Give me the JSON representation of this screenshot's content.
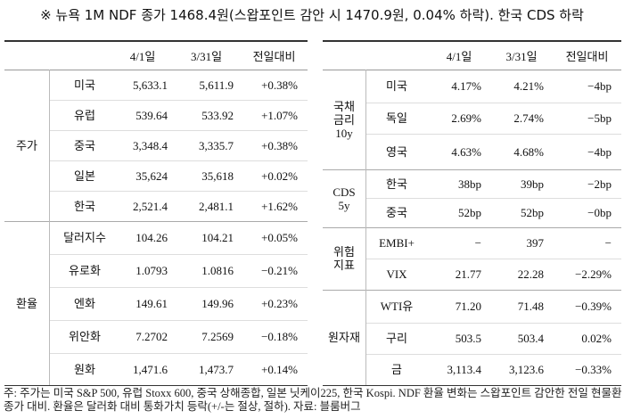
{
  "title": "※ 뉴욕 1M NDF 종가 1468.4원(스왑포인트 감안 시 1470.9원, 0.04% 하락). 한국 CDS 하락",
  "left_table": {
    "header": [
      "4/1일",
      "3/31일",
      "전일대비"
    ],
    "groups": [
      {
        "label": "주가",
        "rows": [
          [
            "미국",
            "5,633.1",
            "5,611.9",
            "+0.38%"
          ],
          [
            "유럽",
            "539.64",
            "533.92",
            "+1.07%"
          ],
          [
            "중국",
            "3,348.4",
            "3,335.7",
            "+0.38%"
          ],
          [
            "일본",
            "35,624",
            "35,618",
            "+0.02%"
          ],
          [
            "한국",
            "2,521.4",
            "2,481.1",
            "+1.62%"
          ]
        ]
      },
      {
        "label": "환율",
        "rows": [
          [
            "달러지수",
            "104.26",
            "104.21",
            "+0.05%"
          ],
          [
            "유로화",
            "1.0793",
            "1.0816",
            "−0.21%"
          ],
          [
            "엔화",
            "149.61",
            "149.96",
            "+0.23%"
          ],
          [
            "위안화",
            "7.2702",
            "7.2569",
            "−0.18%"
          ],
          [
            "원화",
            "1,471.6",
            "1,473.7",
            "+0.14%"
          ]
        ]
      }
    ]
  },
  "right_table": {
    "header": [
      "4/1일",
      "3/31일",
      "전일대비"
    ],
    "groups": [
      {
        "label": "국채\n금리\n10y",
        "rows": [
          [
            "미국",
            "4.17%",
            "4.21%",
            "−4bp"
          ],
          [
            "독일",
            "2.69%",
            "2.74%",
            "−5bp"
          ],
          [
            "영국",
            "4.63%",
            "4.68%",
            "−4bp"
          ]
        ]
      },
      {
        "label": "CDS\n5y",
        "rows": [
          [
            "한국",
            "38bp",
            "39bp",
            "−2bp"
          ],
          [
            "중국",
            "52bp",
            "52bp",
            "−0bp"
          ]
        ]
      },
      {
        "label": "위험\n지표",
        "rows": [
          [
            "EMBI+",
            "−",
            "397",
            "−"
          ],
          [
            "VIX",
            "21.77",
            "22.28",
            "−2.29%"
          ]
        ]
      },
      {
        "label": "원자재",
        "rows": [
          [
            "WTI유",
            "71.20",
            "71.48",
            "−0.39%"
          ],
          [
            "구리",
            "503.5",
            "503.4",
            "0.02%"
          ],
          [
            "금",
            "3,113.4",
            "3,123.6",
            "−0.33%"
          ]
        ]
      }
    ]
  },
  "note": "주: 주가는 미국 S&P 500, 유럽 Stoxx 600, 중국 상해종합, 일본 닛케이225, 한국 Kospi. NDF 환율 변화는 스왑포인트 감안한 전일 현물환 종가 대비. 환율은 달러화 대비 통화가치 등락(+/-는 절상, 절하). 자료: 블룸버그"
}
